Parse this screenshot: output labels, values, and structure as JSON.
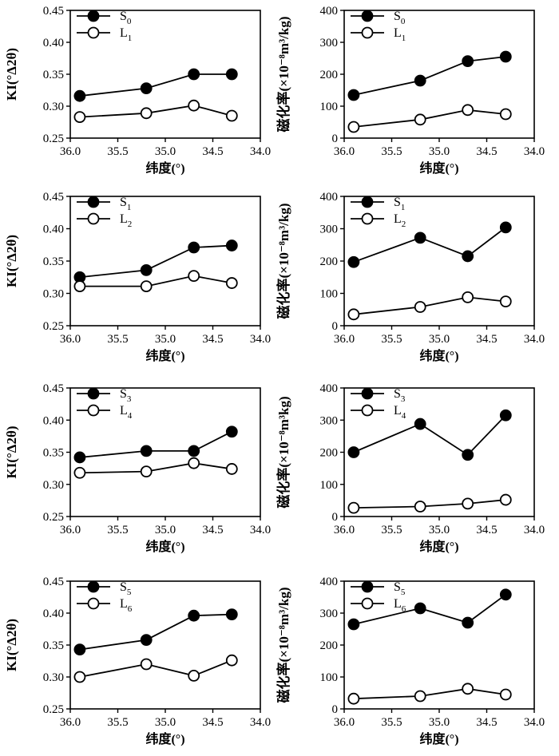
{
  "chart_data": [
    {
      "type": "line",
      "panel": "a-left",
      "xlabel": "纬度(°)",
      "ylabel": "KI(°Δ2θ)",
      "xlim": [
        36.0,
        34.0
      ],
      "ylim": [
        0.25,
        0.45
      ],
      "xticks": [
        "36.0",
        "35.5",
        "35.0",
        "34.5",
        "34.0"
      ],
      "yticks": [
        "0.25",
        "0.30",
        "0.35",
        "0.40",
        "0.45"
      ],
      "x": [
        35.9,
        35.2,
        34.7,
        34.3
      ],
      "series": [
        {
          "name": "S0",
          "letter": "S",
          "sub": "0",
          "marker": "filled",
          "values": [
            0.316,
            0.328,
            0.35,
            0.35
          ]
        },
        {
          "name": "L1",
          "letter": "L",
          "sub": "1",
          "marker": "open",
          "values": [
            0.283,
            0.289,
            0.301,
            0.285
          ]
        }
      ]
    },
    {
      "type": "line",
      "panel": "a-right",
      "xlabel": "纬度(°)",
      "ylabel": "磁化率(×10⁻⁸m³/kg)",
      "xlim": [
        36.0,
        34.0
      ],
      "ylim": [
        0,
        400
      ],
      "xticks": [
        "36.0",
        "35.5",
        "35.0",
        "34.5",
        "34.0"
      ],
      "yticks": [
        "0",
        "100",
        "200",
        "300",
        "400"
      ],
      "x": [
        35.9,
        35.2,
        34.7,
        34.3
      ],
      "series": [
        {
          "name": "S0",
          "letter": "S",
          "sub": "0",
          "marker": "filled",
          "values": [
            135,
            180,
            241,
            255
          ]
        },
        {
          "name": "L1",
          "letter": "L",
          "sub": "1",
          "marker": "open",
          "values": [
            35,
            58,
            88,
            75
          ]
        }
      ]
    },
    {
      "type": "line",
      "panel": "b-left",
      "xlabel": "纬度(°)",
      "ylabel": "KI(°Δ2θ)",
      "xlim": [
        36.0,
        34.0
      ],
      "ylim": [
        0.25,
        0.45
      ],
      "xticks": [
        "36.0",
        "35.5",
        "35.0",
        "34.5",
        "34.0"
      ],
      "yticks": [
        "0.25",
        "0.30",
        "0.35",
        "0.40",
        "0.45"
      ],
      "x": [
        35.9,
        35.2,
        34.7,
        34.3
      ],
      "series": [
        {
          "name": "S1",
          "letter": "S",
          "sub": "1",
          "marker": "filled",
          "values": [
            0.325,
            0.336,
            0.371,
            0.374
          ]
        },
        {
          "name": "L2",
          "letter": "L",
          "sub": "2",
          "marker": "open",
          "values": [
            0.311,
            0.311,
            0.327,
            0.316
          ]
        }
      ]
    },
    {
      "type": "line",
      "panel": "b-right",
      "xlabel": "纬度(°)",
      "ylabel": "磁化率(×10⁻⁸m³/kg)",
      "xlim": [
        36.0,
        34.0
      ],
      "ylim": [
        0,
        400
      ],
      "xticks": [
        "36.0",
        "35.5",
        "35.0",
        "34.5",
        "34.0"
      ],
      "yticks": [
        "0",
        "100",
        "200",
        "300",
        "400"
      ],
      "x": [
        35.9,
        35.2,
        34.7,
        34.3
      ],
      "series": [
        {
          "name": "S1",
          "letter": "S",
          "sub": "1",
          "marker": "filled",
          "values": [
            197,
            272,
            215,
            304
          ]
        },
        {
          "name": "L2",
          "letter": "L",
          "sub": "2",
          "marker": "open",
          "values": [
            35,
            58,
            88,
            75
          ]
        }
      ]
    },
    {
      "type": "line",
      "panel": "c-left",
      "xlabel": "纬度(°)",
      "ylabel": "KI(°Δ2θ)",
      "xlim": [
        36.0,
        34.0
      ],
      "ylim": [
        0.25,
        0.45
      ],
      "xticks": [
        "36.0",
        "35.5",
        "35.0",
        "34.5",
        "34.0"
      ],
      "yticks": [
        "0.25",
        "0.30",
        "0.35",
        "0.40",
        "0.45"
      ],
      "x": [
        35.9,
        35.2,
        34.7,
        34.3
      ],
      "series": [
        {
          "name": "S3",
          "letter": "S",
          "sub": "3",
          "marker": "filled",
          "values": [
            0.342,
            0.352,
            0.352,
            0.382
          ]
        },
        {
          "name": "L4",
          "letter": "L",
          "sub": "4",
          "marker": "open",
          "values": [
            0.318,
            0.32,
            0.333,
            0.324
          ]
        }
      ]
    },
    {
      "type": "line",
      "panel": "c-right",
      "xlabel": "纬度(°)",
      "ylabel": "磁化率(×10⁻⁸m³kg)",
      "xlim": [
        36.0,
        34.0
      ],
      "ylim": [
        0,
        400
      ],
      "xticks": [
        "36.0",
        "35.5",
        "35.0",
        "34.5",
        "34.0"
      ],
      "yticks": [
        "0",
        "100",
        "200",
        "300",
        "400"
      ],
      "x": [
        35.9,
        35.2,
        34.7,
        34.3
      ],
      "series": [
        {
          "name": "S3",
          "letter": "S",
          "sub": "3",
          "marker": "filled",
          "values": [
            200,
            288,
            192,
            315
          ]
        },
        {
          "name": "L4",
          "letter": "L",
          "sub": "4",
          "marker": "open",
          "values": [
            27,
            31,
            40,
            52
          ]
        }
      ]
    },
    {
      "type": "line",
      "panel": "d-left",
      "xlabel": "纬度(°)",
      "ylabel": "KI(°Δ2θ)",
      "xlim": [
        36.0,
        34.0
      ],
      "ylim": [
        0.25,
        0.45
      ],
      "xticks": [
        "36.0",
        "35.5",
        "35.0",
        "34.5",
        "34.0"
      ],
      "yticks": [
        "0.25",
        "0.30",
        "0.35",
        "0.40",
        "0.45"
      ],
      "x": [
        35.9,
        35.2,
        34.7,
        34.3
      ],
      "series": [
        {
          "name": "S5",
          "letter": "S",
          "sub": "5",
          "marker": "filled",
          "values": [
            0.343,
            0.358,
            0.396,
            0.398
          ]
        },
        {
          "name": "L6",
          "letter": "L",
          "sub": "6",
          "marker": "open",
          "values": [
            0.3,
            0.32,
            0.302,
            0.326
          ]
        }
      ]
    },
    {
      "type": "line",
      "panel": "d-right",
      "xlabel": "纬度(°)",
      "ylabel": "磁化率(×10⁻⁸m³/kg)",
      "xlim": [
        36.0,
        34.0
      ],
      "ylim": [
        0,
        400
      ],
      "xticks": [
        "36.0",
        "35.5",
        "35.0",
        "34.5",
        "34.0"
      ],
      "yticks": [
        "0",
        "100",
        "200",
        "300",
        "400"
      ],
      "x": [
        35.9,
        35.2,
        34.7,
        34.3
      ],
      "series": [
        {
          "name": "S5",
          "letter": "S",
          "sub": "5",
          "marker": "filled",
          "values": [
            265,
            315,
            270,
            358
          ]
        },
        {
          "name": "L6",
          "letter": "L",
          "sub": "6",
          "marker": "open",
          "values": [
            32,
            40,
            63,
            45
          ]
        }
      ]
    }
  ]
}
